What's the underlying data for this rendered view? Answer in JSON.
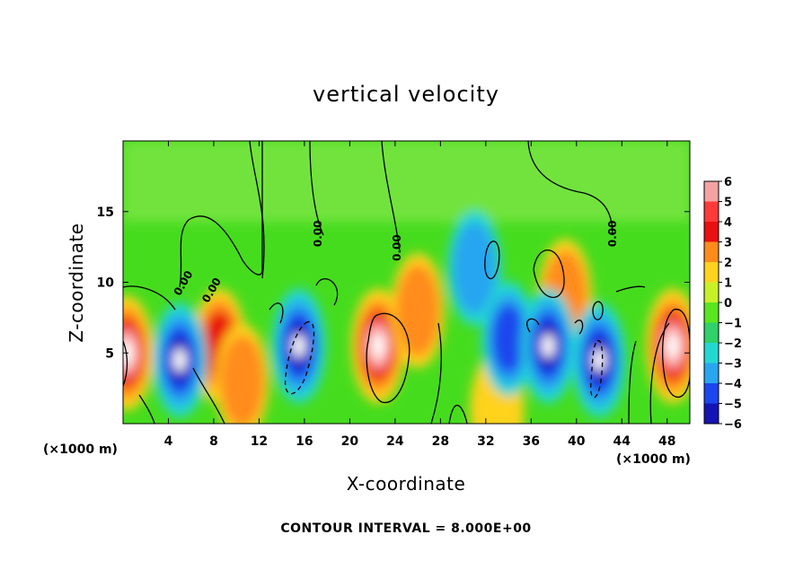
{
  "chart_data": {
    "type": "heatmap",
    "title": "vertical velocity",
    "xlabel": "X-coordinate",
    "ylabel": "Z-coordinate",
    "x_unit_left": "(×1000 m)",
    "x_unit_right": "(×1000 m)",
    "xlim": [
      0,
      50
    ],
    "ylim": [
      0,
      20
    ],
    "x_ticks": [
      4,
      8,
      12,
      16,
      20,
      24,
      28,
      32,
      36,
      40,
      44,
      48
    ],
    "y_ticks": [
      5,
      10,
      15
    ],
    "colorbar": {
      "levels": [
        6,
        5,
        4,
        3,
        2,
        1,
        0,
        -1,
        -2,
        -3,
        -4,
        -5,
        -6
      ],
      "colors": [
        "#f4a2a2",
        "#ff3a3a",
        "#e81010",
        "#ff8c1a",
        "#ffd21e",
        "#c8f028",
        "#5ae61e",
        "#2ed16a",
        "#24d8d2",
        "#28a6f0",
        "#1c46ee",
        "#1414b4",
        "#6e14a0"
      ]
    },
    "contour_label": "0.00",
    "footer": "CONTOUR INTERVAL = 8.000E+00",
    "updrafts": [
      {
        "x": 0.3,
        "z": 5.0,
        "peak": 9
      },
      {
        "x": 8.5,
        "z": 5.5,
        "peak": 5
      },
      {
        "x": 10.5,
        "z": 3.0,
        "peak": 4
      },
      {
        "x": 22.5,
        "z": 5.5,
        "peak": 10
      },
      {
        "x": 26.0,
        "z": 8.0,
        "peak": 3
      },
      {
        "x": 39.0,
        "z": 9.0,
        "peak": 3
      },
      {
        "x": 48.5,
        "z": 5.5,
        "peak": 9
      },
      {
        "x": 33.0,
        "z": 1.0,
        "peak": 2
      }
    ],
    "downdrafts": [
      {
        "x": 5.0,
        "z": 4.5,
        "peak": -10
      },
      {
        "x": 15.5,
        "z": 5.5,
        "peak": -10
      },
      {
        "x": 31.0,
        "z": 11.0,
        "peak": -4
      },
      {
        "x": 34.0,
        "z": 6.0,
        "peak": -5
      },
      {
        "x": 37.5,
        "z": 5.5,
        "peak": -9
      },
      {
        "x": 42.0,
        "z": 4.5,
        "peak": -9
      }
    ]
  },
  "labels": {
    "title": "vertical velocity",
    "xlabel": "X-coordinate",
    "ylabel": "Z-coordinate",
    "unit_left": "(×1000 m)",
    "unit_right": "(×1000 m)",
    "footer": "CONTOUR INTERVAL = 8.000E+00",
    "contour_label": "0.00"
  }
}
